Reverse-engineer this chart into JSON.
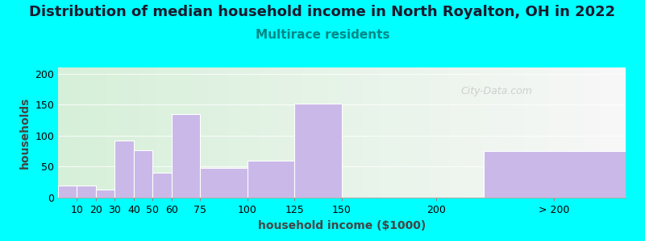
{
  "title": "Distribution of median household income in North Royalton, OH in 2022",
  "subtitle": "Multirace residents",
  "xlabel": "household income ($1000)",
  "ylabel": "households",
  "background_outer": "#00FFFF",
  "bar_color": "#c9b8e8",
  "bar_edgecolor": "#ffffff",
  "yticks": [
    0,
    50,
    100,
    150,
    200
  ],
  "categories": [
    "10",
    "20",
    "30",
    "40",
    "50",
    "60",
    "75",
    "100",
    "125",
    "150",
    "200",
    "> 200"
  ],
  "values": [
    20,
    20,
    13,
    92,
    77,
    40,
    135,
    48,
    60,
    152,
    0,
    75
  ],
  "bar_lefts": [
    0,
    10,
    20,
    30,
    40,
    50,
    60,
    75,
    100,
    125,
    150,
    225
  ],
  "bar_widths": [
    10,
    10,
    10,
    10,
    10,
    10,
    15,
    25,
    25,
    25,
    0,
    75
  ],
  "xlim": [
    0,
    300
  ],
  "xtick_positions": [
    10,
    20,
    30,
    40,
    50,
    60,
    75,
    100,
    125,
    150,
    200,
    262
  ],
  "xtick_labels": [
    "10",
    "20",
    "30",
    "40",
    "50",
    "60",
    "75",
    "100",
    "125",
    "150",
    "200",
    "> 200"
  ],
  "ylim": [
    0,
    210
  ],
  "title_fontsize": 13,
  "subtitle_fontsize": 11,
  "axis_label_fontsize": 10,
  "tick_fontsize": 9,
  "watermark_text": "City-Data.com",
  "watermark_color": "#c0c0c0",
  "title_color": "#1a1a2e",
  "subtitle_color": "#008888",
  "ylabel_color": "#444444",
  "xlabel_color": "#444444"
}
